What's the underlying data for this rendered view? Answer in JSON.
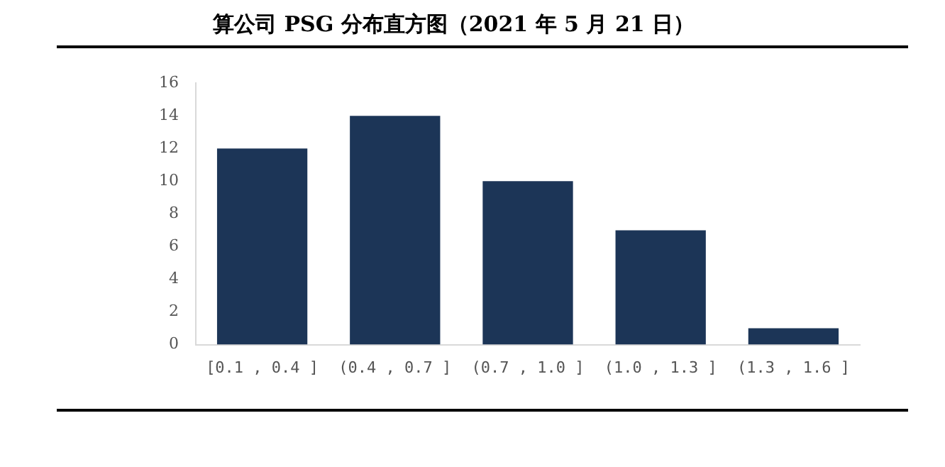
{
  "chart_data": {
    "type": "bar",
    "title": "算公司 PSG 分布直方图（2021 年 5 月 21 日）",
    "categories": [
      "[0.1 , 0.4 ]",
      "(0.4 , 0.7 ]",
      "(0.7 , 1.0 ]",
      "(1.0 , 1.3 ]",
      "(1.3 , 1.6 ]"
    ],
    "values": [
      12,
      14,
      10,
      7,
      1
    ],
    "color": "#1c3557",
    "ylim": [
      0,
      16
    ],
    "yticks": [
      0,
      2,
      4,
      6,
      8,
      10,
      12,
      14,
      16
    ],
    "grid": false,
    "legend": false
  }
}
